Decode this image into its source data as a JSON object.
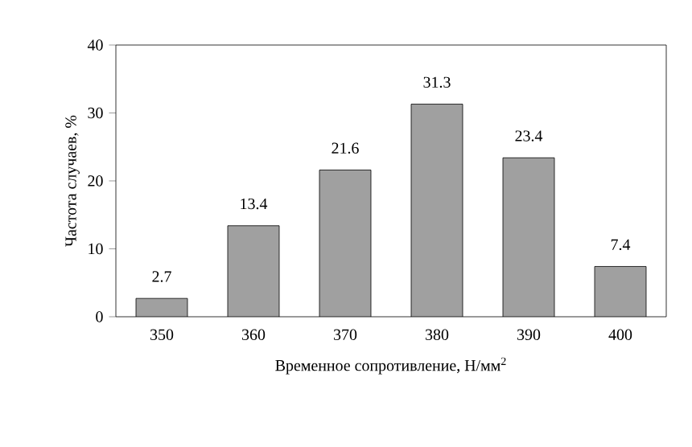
{
  "chart_data": {
    "type": "bar",
    "xlabel": "Временное сопротивление, Н/мм$^{2}$",
    "ylabel": "Частота случаев, %",
    "categories": [
      "350",
      "360",
      "370",
      "380",
      "390",
      "400"
    ],
    "values": [
      2.7,
      13.4,
      21.6,
      31.3,
      23.4,
      7.4
    ],
    "color": "#a0a0a0",
    "ylim": [
      0,
      40
    ],
    "yticks": [
      0,
      10,
      20,
      30,
      40
    ],
    "data_labels": true,
    "grid": false
  }
}
